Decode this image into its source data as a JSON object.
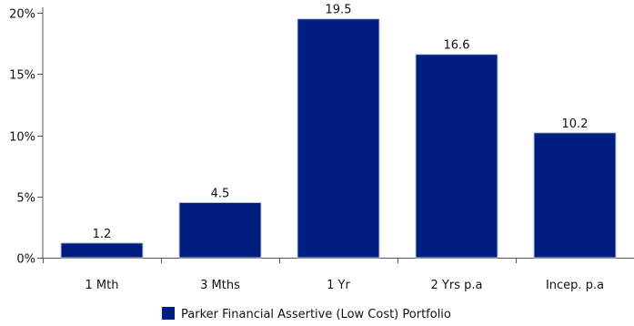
{
  "chart_data": {
    "type": "bar",
    "categories": [
      "1 Mth",
      "3 Mths",
      "1 Yr",
      "2 Yrs p.a",
      "Incep. p.a"
    ],
    "series": [
      {
        "name": "Parker Financial Assertive (Low Cost) Portfolio",
        "values": [
          1.2,
          4.5,
          19.5,
          16.6,
          10.2
        ]
      }
    ],
    "data_labels": [
      "1.2",
      "4.5",
      "19.5",
      "16.6",
      "10.2"
    ],
    "y_ticks": [
      0,
      5,
      10,
      15,
      20
    ],
    "y_tick_labels": [
      "0%",
      "5%",
      "10%",
      "15%",
      "20%"
    ],
    "ylim": [
      0,
      20
    ],
    "grid": false,
    "legend_position": "bottom-center",
    "colors": {
      "bar": "#001e80",
      "bar_edge": "#b8c4e0",
      "axis": "#555555"
    }
  }
}
